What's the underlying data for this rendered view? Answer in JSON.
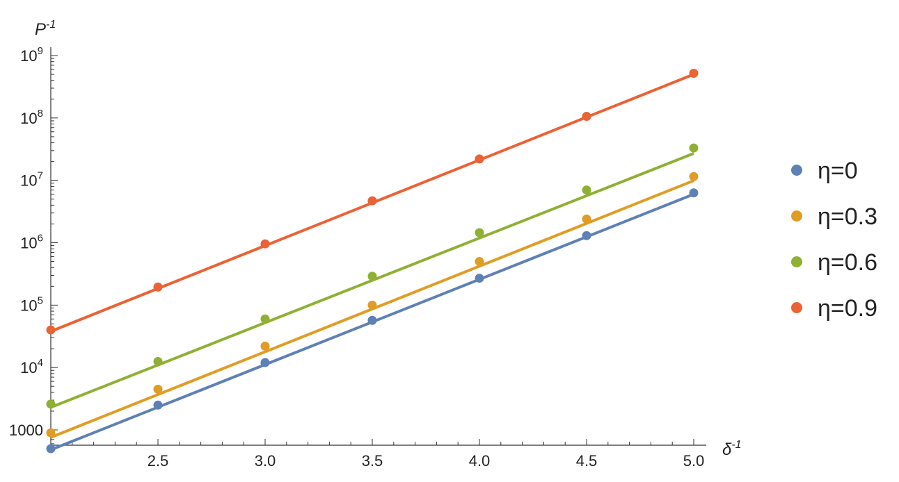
{
  "chart_data": {
    "type": "scatter",
    "title": "",
    "xlabel": "δ⁻¹",
    "ylabel": "P⁻¹",
    "x_axis_label": {
      "base": "δ",
      "sup": "-1"
    },
    "y_axis_label": {
      "base": "P",
      "sup": "-1"
    },
    "xlim": [
      2.0,
      5.05
    ],
    "ylim": [
      550,
      1300000000
    ],
    "y_scale": "log",
    "grid": false,
    "legend_position": "right",
    "x_ticks": [
      {
        "value": 2.5,
        "label": "2.5"
      },
      {
        "value": 3.0,
        "label": "3.0"
      },
      {
        "value": 3.5,
        "label": "3.5"
      },
      {
        "value": 4.0,
        "label": "4.0"
      },
      {
        "value": 4.5,
        "label": "4.5"
      },
      {
        "value": 5.0,
        "label": "5.0"
      }
    ],
    "y_ticks": [
      {
        "value": 1000,
        "label": "1000",
        "base": "1000",
        "exp": ""
      },
      {
        "value": 10000,
        "label": "10^4",
        "base": "10",
        "exp": "4"
      },
      {
        "value": 100000,
        "label": "10^5",
        "base": "10",
        "exp": "5"
      },
      {
        "value": 1000000,
        "label": "10^6",
        "base": "10",
        "exp": "6"
      },
      {
        "value": 10000000,
        "label": "10^7",
        "base": "10",
        "exp": "7"
      },
      {
        "value": 100000000,
        "label": "10^8",
        "base": "10",
        "exp": "8"
      },
      {
        "value": 1000000000,
        "label": "10^9",
        "base": "10",
        "exp": "9"
      }
    ],
    "x": [
      2.0,
      2.5,
      3.0,
      3.5,
      4.0,
      4.5,
      5.0
    ],
    "series": [
      {
        "name": "η=0",
        "color": "#5E81B5",
        "values": [
          500,
          2500,
          12000,
          57000,
          270000,
          1300000,
          6300000
        ],
        "fit": {
          "x": [
            2.0,
            5.0
          ],
          "y": [
            480,
            6000000
          ]
        }
      },
      {
        "name": "η=0.3",
        "color": "#E19C24",
        "values": [
          900,
          4500,
          22000,
          100000,
          500000,
          2400000,
          11500000
        ],
        "fit": {
          "x": [
            2.0,
            5.0
          ],
          "y": [
            760,
            9900000
          ]
        }
      },
      {
        "name": "η=0.6",
        "color": "#8FB032",
        "values": [
          2600,
          12500,
          60000,
          290000,
          1450000,
          7000000,
          33000000
        ],
        "fit": {
          "x": [
            2.0,
            5.0
          ],
          "y": [
            2300,
            27000000
          ]
        }
      },
      {
        "name": "η=0.9",
        "color": "#EB6235",
        "values": [
          40000,
          195000,
          960000,
          4700000,
          22000000,
          106000000,
          520000000
        ],
        "fit": {
          "x": [
            2.0,
            5.0
          ],
          "y": [
            38000,
            500000000
          ]
        }
      }
    ]
  }
}
